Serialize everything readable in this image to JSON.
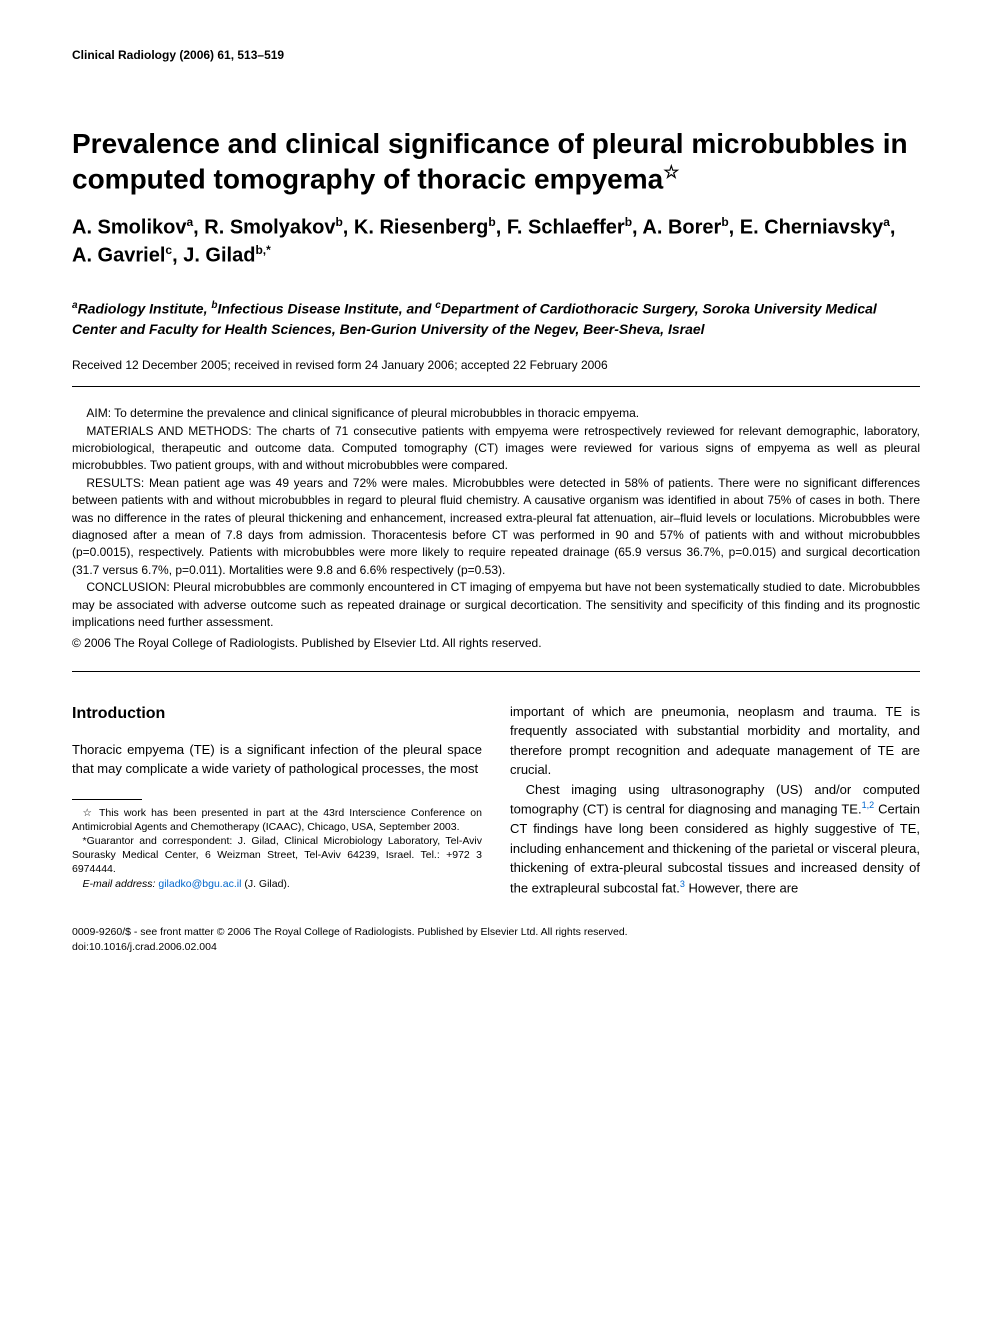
{
  "journal_ref": "Clinical Radiology (2006) 61, 513–519",
  "title": "Prevalence and clinical significance of pleural microbubbles in computed tomography of thoracic empyema",
  "title_note_symbol": "☆",
  "authors_html": "A. Smolikov<sup>a</sup>, R. Smolyakov<sup>b</sup>, K. Riesenberg<sup>b</sup>, F. Schlaeffer<sup>b</sup>, A. Borer<sup>b</sup>, E. Cherniavsky<sup>a</sup>, A. Gavriel<sup>c</sup>, J. Gilad<sup>b,*</sup>",
  "affiliations_html": "<sup>a</sup>Radiology Institute, <sup>b</sup>Infectious Disease Institute, and <sup>c</sup>Department of Cardiothoracic Surgery, Soroka University Medical Center and Faculty for Health Sciences, Ben-Gurion University of the Negev, Beer-Sheva, Israel",
  "dates": "Received 12 December 2005; received in revised form 24 January 2006; accepted 22 February 2006",
  "abstract": {
    "aim": "AIM: To determine the prevalence and clinical significance of pleural microbubbles in thoracic empyema.",
    "materials": "MATERIALS AND METHODS: The charts of 71 consecutive patients with empyema were retrospectively reviewed for relevant demographic, laboratory, microbiological, therapeutic and outcome data. Computed tomography (CT) images were reviewed for various signs of empyema as well as pleural microbubbles. Two patient groups, with and without microbubbles were compared.",
    "results": "RESULTS: Mean patient age was 49 years and 72% were males. Microbubbles were detected in 58% of patients. There were no significant differences between patients with and without microbubbles in regard to pleural fluid chemistry. A causative organism was identified in about 75% of cases in both. There was no difference in the rates of pleural thickening and enhancement, increased extra-pleural fat attenuation, air–fluid levels or loculations. Microbubbles were diagnosed after a mean of 7.8 days from admission. Thoracentesis before CT was performed in 90 and 57% of patients with and without microbubbles (p=0.0015), respectively. Patients with microbubbles were more likely to require repeated drainage (65.9 versus 36.7%, p=0.015) and surgical decortication (31.7 versus 6.7%, p=0.011). Mortalities were 9.8 and 6.6% respectively (p=0.53).",
    "conclusion": "CONCLUSION: Pleural microbubbles are commonly encountered in CT imaging of empyema but have not been systematically studied to date. Microbubbles may be associated with adverse outcome such as repeated drainage or surgical decortication. The sensitivity and specificity of this finding and its prognostic implications need further assessment.",
    "copyright": "© 2006 The Royal College of Radiologists. Published by Elsevier Ltd. All rights reserved."
  },
  "intro_heading": "Introduction",
  "intro_p1": "Thoracic empyema (TE) is a significant infection of the pleural space that may complicate a wide variety of pathological processes, the most",
  "col2_p1": "important of which are pneumonia, neoplasm and trauma. TE is frequently associated with substantial morbidity and mortality, and therefore prompt recognition and adequate management of TE are crucial.",
  "col2_p2_pre": "Chest imaging using ultrasonography (US) and/or computed tomography (CT) is central for diagnosing and managing TE.",
  "col2_ref12": "1,2",
  "col2_p2_mid": " Certain CT findings have long been considered as highly suggestive of TE, including enhancement and thickening of the parietal or visceral pleura, thickening of extra-pleural subcostal tissues and increased density of the extrapleural subcostal fat.",
  "col2_ref3": "3",
  "col2_p2_post": " However, there are",
  "footnotes": {
    "star": "☆ This work has been presented in part at the 43rd Interscience Conference on Antimicrobial Agents and Chemotherapy (ICAAC), Chicago, USA, September 2003.",
    "corr": "*Guarantor and correspondent: J. Gilad, Clinical Microbiology Laboratory, Tel-Aviv Sourasky Medical Center, 6 Weizman Street, Tel-Aviv 64239, Israel. Tel.: +972 3 6974444.",
    "email_label": "E-mail address: ",
    "email": "giladko@bgu.ac.il",
    "email_suffix": " (J. Gilad)."
  },
  "footer": {
    "line1": "0009-9260/$ - see front matter © 2006 The Royal College of Radiologists. Published by Elsevier Ltd. All rights reserved.",
    "line2": "doi:10.1016/j.crad.2006.02.004"
  },
  "colors": {
    "text": "#000000",
    "link": "#0066cc",
    "background": "#ffffff"
  },
  "typography": {
    "title_fontsize": 28,
    "authors_fontsize": 20,
    "body_fontsize": 13,
    "abstract_fontsize": 12,
    "footnote_fontsize": 10.5
  }
}
